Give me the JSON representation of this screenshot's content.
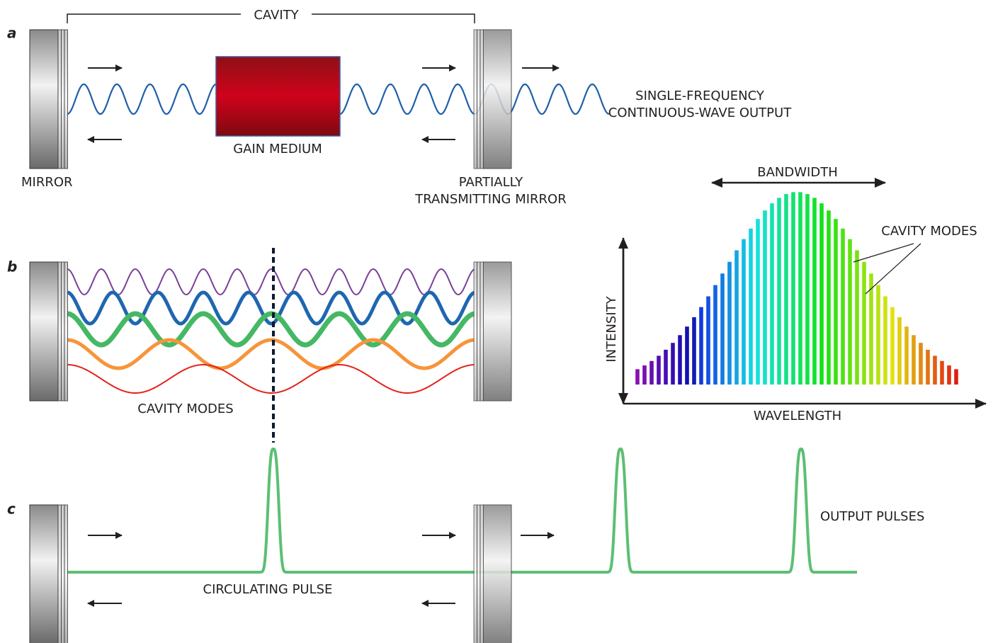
{
  "panel_a": {
    "label": "a",
    "cavity": "CAVITY",
    "gain_medium": "GAIN MEDIUM",
    "mirror": "MIRROR",
    "partial_mirror": [
      "PARTIALLY",
      "TRANSMITTING MIRROR"
    ],
    "output": [
      "SINGLE-FREQUENCY",
      "CONTINUOUS-WAVE OUTPUT"
    ]
  },
  "panel_b": {
    "label": "b",
    "cavity_modes": "CAVITY MODES",
    "spectrum": {
      "bandwidth": "BANDWIDTH",
      "cavity_modes": "CAVITY MODES",
      "y_axis": "INTENSITY",
      "x_axis": "WAVELENGTH"
    }
  },
  "panel_c": {
    "label": "c",
    "circulating_pulse": "CIRCULATING PULSE",
    "output_pulses": "OUTPUT PULSES"
  }
}
